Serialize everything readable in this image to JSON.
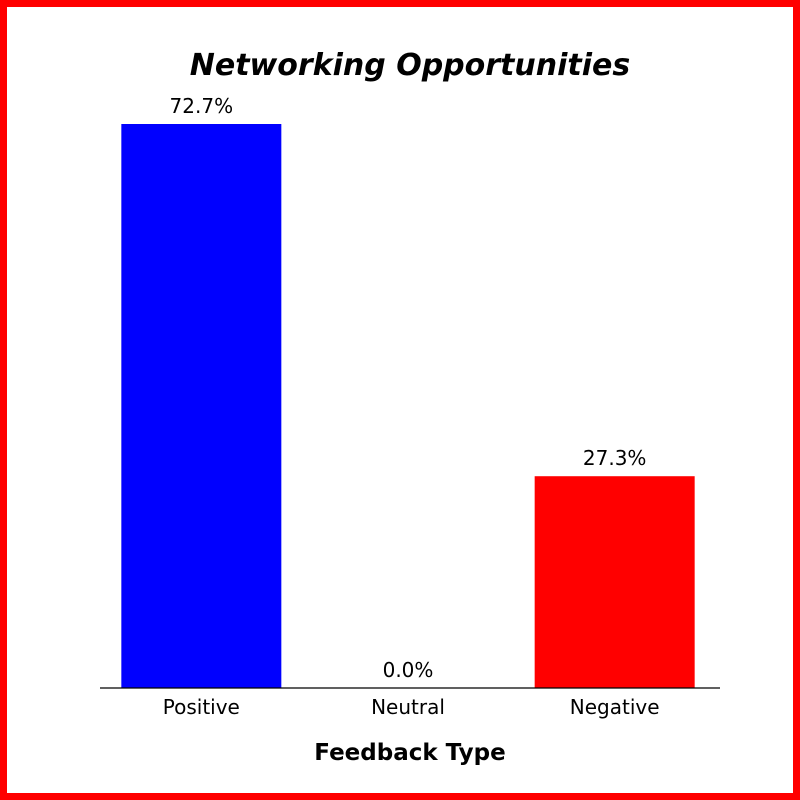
{
  "chart_data": {
    "type": "bar",
    "title": "Networking Opportunities",
    "xlabel": "Feedback Type",
    "ylabel": "",
    "categories": [
      "Positive",
      "Neutral",
      "Negative"
    ],
    "values": [
      72.7,
      0.0,
      27.3
    ],
    "data_labels": [
      "72.7%",
      "0.0%",
      "27.3%"
    ],
    "ylim": [
      0,
      72.7
    ],
    "grid": false,
    "legend": "none",
    "colors": [
      "#0000ff",
      "#808080",
      "#ff0000"
    ],
    "frame_color": "#ff0000"
  }
}
